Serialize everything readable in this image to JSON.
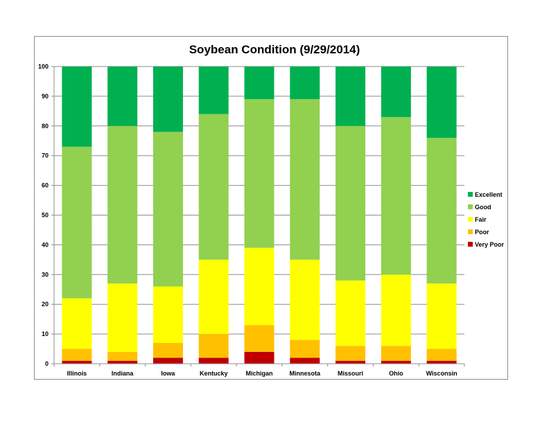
{
  "chart_data": {
    "type": "bar",
    "stacked": true,
    "title": "Soybean Condition (9/29/2014)",
    "xlabel": "",
    "ylabel": "",
    "ylim": [
      0,
      100
    ],
    "yticks": [
      0,
      10,
      20,
      30,
      40,
      50,
      60,
      70,
      80,
      90,
      100
    ],
    "grid": true,
    "legend_position": "right",
    "categories": [
      "Illinois",
      "Indiana",
      "Iowa",
      "Kentucky",
      "Michigan",
      "Minnesota",
      "Missouri",
      "Ohio",
      "Wisconsin"
    ],
    "series": [
      {
        "name": "Very Poor",
        "color": "#c00000",
        "values": [
          1,
          1,
          2,
          2,
          4,
          2,
          1,
          1,
          1
        ]
      },
      {
        "name": "Poor",
        "color": "#ffc000",
        "values": [
          4,
          3,
          5,
          8,
          9,
          6,
          5,
          5,
          4
        ]
      },
      {
        "name": "Fair",
        "color": "#ffff00",
        "values": [
          17,
          23,
          19,
          25,
          26,
          27,
          22,
          24,
          22
        ]
      },
      {
        "name": "Good",
        "color": "#92d050",
        "values": [
          51,
          53,
          52,
          49,
          50,
          54,
          52,
          53,
          49
        ]
      },
      {
        "name": "Excellent",
        "color": "#00b050",
        "values": [
          27,
          20,
          22,
          16,
          11,
          11,
          20,
          17,
          24
        ]
      }
    ],
    "legend_order": [
      "Excellent",
      "Good",
      "Fair",
      "Poor",
      "Very Poor"
    ]
  }
}
